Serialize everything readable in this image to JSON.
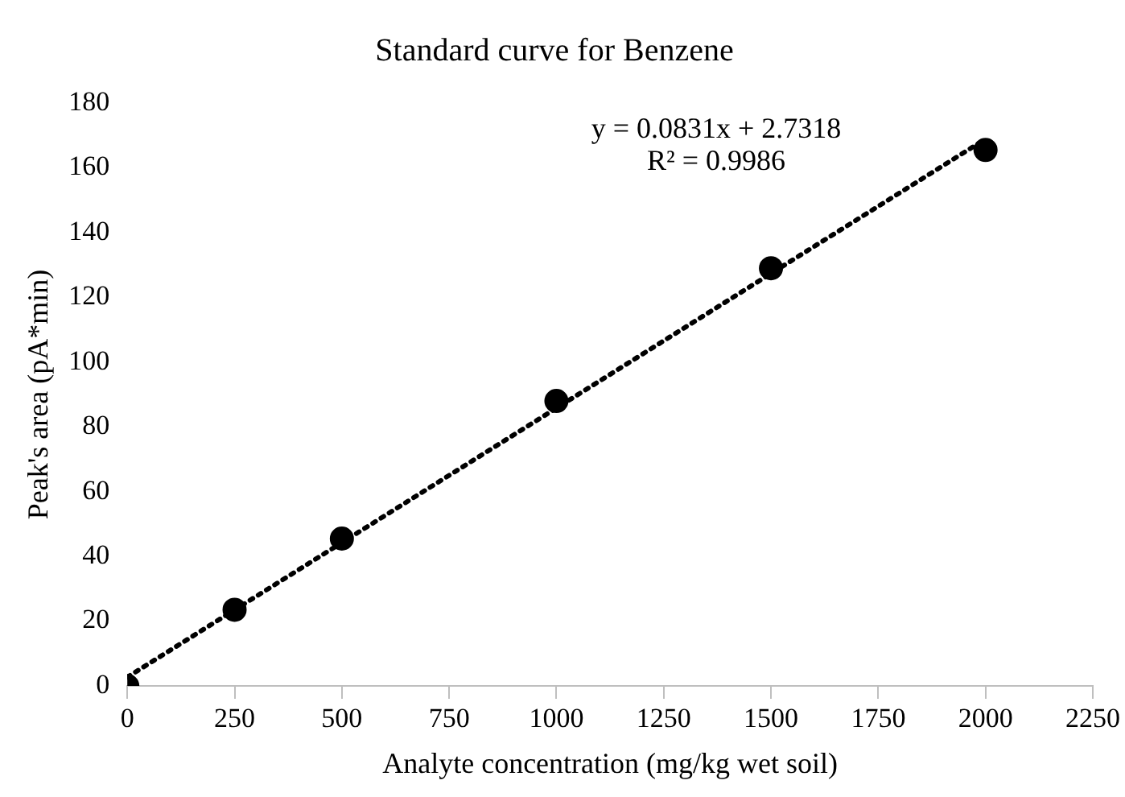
{
  "chart_data": {
    "type": "scatter",
    "title": "Standard curve for Benzene",
    "xlabel": "Analyte concentration (mg/kg wet soil)",
    "ylabel": "Peak's area (pA*min)",
    "annotations": [
      "y = 0.0831x + 2.7318",
      "R² = 0.9986"
    ],
    "series": [
      {
        "color": "#000000",
        "x": [
          0,
          250,
          500,
          1000,
          1500,
          2000
        ],
        "values": [
          0,
          23.5,
          45.5,
          88,
          129,
          165.5
        ],
        "marker": "circle"
      },
      {
        "type": "line",
        "color": "#000000",
        "x": [
          0,
          2000
        ],
        "values": [
          2.7,
          168.9
        ],
        "line_style": "dotted",
        "marker": "none"
      }
    ],
    "xlim": [
      0,
      2250
    ],
    "xticks": [
      0,
      250,
      500,
      750,
      1000,
      1250,
      1500,
      1750,
      2000,
      2250
    ],
    "ylim": [
      0,
      180
    ],
    "yticks": [
      0,
      20,
      40,
      60,
      80,
      100,
      120,
      140,
      160,
      180
    ],
    "grid": false,
    "legend": false
  }
}
